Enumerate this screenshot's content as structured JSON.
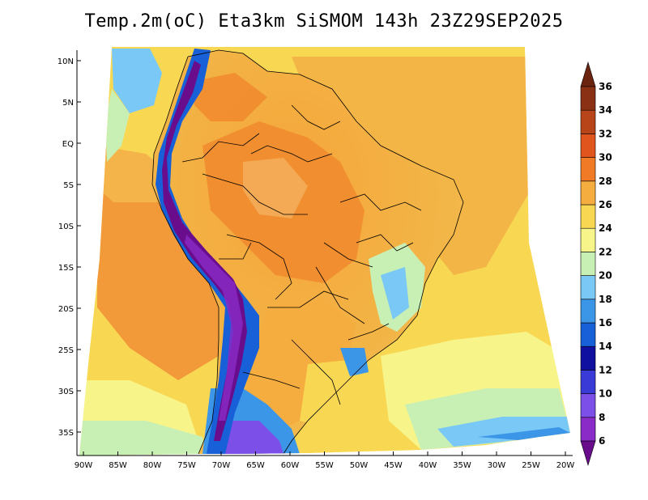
{
  "title": "Temp.2m(oC) Eta3km SiSMOM 143h 23Z29SEP2025",
  "variable": "Temp.2m(oC)",
  "axes": {
    "lat_labels": [
      "10N",
      "5N",
      "EQ",
      "5S",
      "10S",
      "15S",
      "20S",
      "25S",
      "30S",
      "35S"
    ],
    "lat_values": [
      10,
      5,
      0,
      -5,
      -10,
      -15,
      -20,
      -25,
      -30,
      -35
    ],
    "lon_labels": [
      "90W",
      "85W",
      "80W",
      "75W",
      "70W",
      "65W",
      "60W",
      "55W",
      "50W",
      "45W",
      "40W",
      "35W",
      "30W",
      "25W",
      "20W"
    ],
    "lon_values": [
      -90,
      -85,
      -80,
      -75,
      -70,
      -65,
      -60,
      -55,
      -50,
      -45,
      -40,
      -35,
      -30,
      -25,
      -20
    ]
  },
  "colorbar": {
    "levels": [
      "6",
      "8",
      "10",
      "12",
      "14",
      "16",
      "18",
      "20",
      "22",
      "24",
      "26",
      "28",
      "30",
      "32",
      "34",
      "36"
    ],
    "colors": [
      "#6a0d8c",
      "#8a2bc7",
      "#7b4fe8",
      "#3a3ad6",
      "#1010a0",
      "#1760d8",
      "#3c96e8",
      "#79c8f5",
      "#c9f0b4",
      "#f7f58a",
      "#f8d853",
      "#f5ad40",
      "#f07a26",
      "#e0551e",
      "#b8441a",
      "#8a3014",
      "#6b2410"
    ]
  }
}
